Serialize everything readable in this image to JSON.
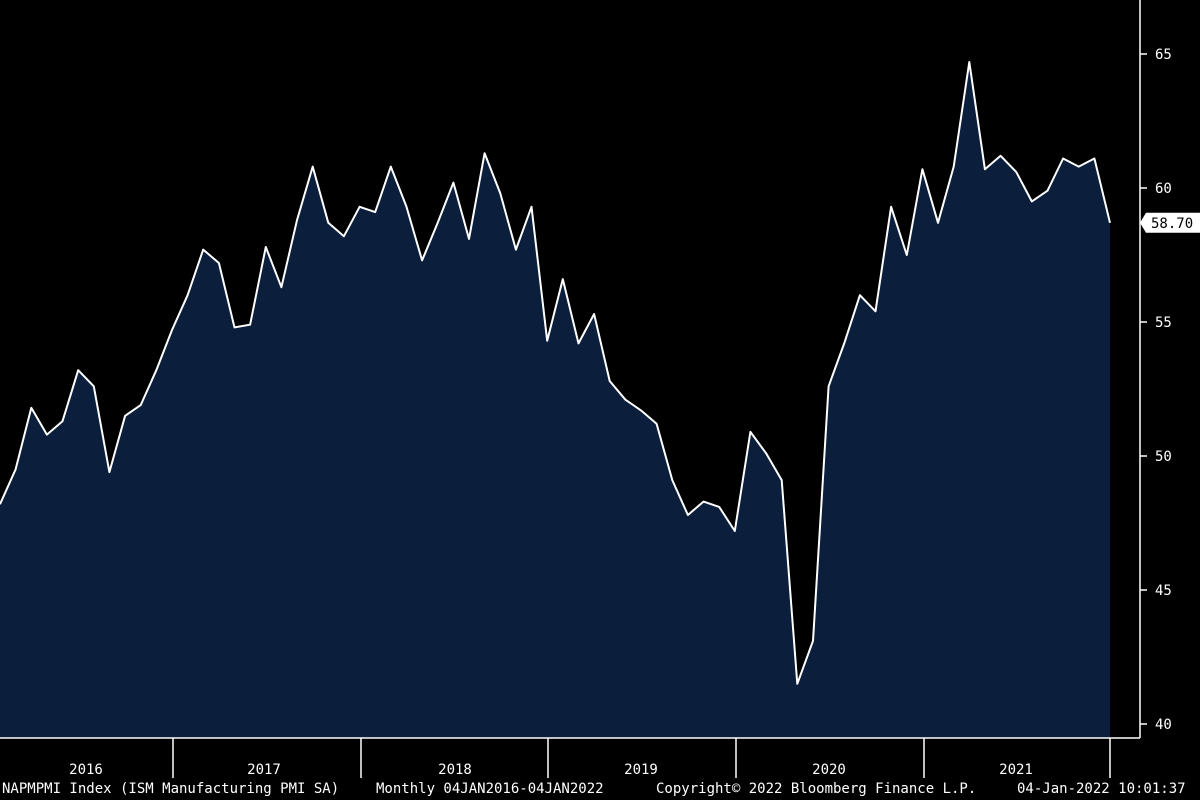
{
  "chart_data": {
    "type": "area",
    "title": "",
    "xlabel": "",
    "ylabel": "",
    "ylim": [
      40,
      67
    ],
    "y_ticks": [
      "40",
      "45",
      "50",
      "55",
      "60",
      "65"
    ],
    "year_labels": [
      "2016",
      "2017",
      "2018",
      "2019",
      "2020",
      "2021"
    ],
    "last_value_label": "58.70",
    "axis_side": "right",
    "grid": false,
    "legend": "none",
    "series": [
      {
        "x": [
          "2016-01",
          "2016-02",
          "2016-03",
          "2016-04",
          "2016-05",
          "2016-06",
          "2016-07",
          "2016-08",
          "2016-09",
          "2016-10",
          "2016-11",
          "2016-12",
          "2017-01",
          "2017-02",
          "2017-03",
          "2017-04",
          "2017-05",
          "2017-06",
          "2017-07",
          "2017-08",
          "2017-09",
          "2017-10",
          "2017-11",
          "2017-12",
          "2018-01",
          "2018-02",
          "2018-03",
          "2018-04",
          "2018-05",
          "2018-06",
          "2018-07",
          "2018-08",
          "2018-09",
          "2018-10",
          "2018-11",
          "2018-12",
          "2019-01",
          "2019-02",
          "2019-03",
          "2019-04",
          "2019-05",
          "2019-06",
          "2019-07",
          "2019-08",
          "2019-09",
          "2019-10",
          "2019-11",
          "2019-12",
          "2020-01",
          "2020-02",
          "2020-03",
          "2020-04",
          "2020-05",
          "2020-06",
          "2020-07",
          "2020-08",
          "2020-09",
          "2020-10",
          "2020-11",
          "2020-12",
          "2021-01",
          "2021-02",
          "2021-03",
          "2021-04",
          "2021-05",
          "2021-06",
          "2021-07",
          "2021-08",
          "2021-09",
          "2021-10",
          "2021-11",
          "2021-12"
        ],
        "values": [
          48.2,
          49.5,
          51.8,
          50.8,
          51.3,
          53.2,
          52.6,
          49.4,
          51.5,
          51.9,
          53.2,
          54.7,
          56.0,
          57.7,
          57.2,
          54.8,
          54.9,
          57.8,
          56.3,
          58.8,
          60.8,
          58.7,
          58.2,
          59.3,
          59.1,
          60.8,
          59.3,
          57.3,
          58.7,
          60.2,
          58.1,
          61.3,
          59.8,
          57.7,
          59.3,
          54.3,
          56.6,
          54.2,
          55.3,
          52.8,
          52.1,
          51.7,
          51.2,
          49.1,
          47.8,
          48.3,
          48.1,
          47.2,
          50.9,
          50.1,
          49.1,
          41.5,
          43.1,
          52.6,
          54.2,
          56.0,
          55.4,
          59.3,
          57.5,
          60.7,
          58.7,
          60.8,
          64.7,
          60.7,
          61.2,
          60.6,
          59.5,
          59.9,
          61.1,
          60.8,
          61.1,
          58.7
        ]
      }
    ],
    "colors": {
      "background": "#000000",
      "area_fill": "#0b1f3d",
      "line": "#ffffff",
      "axis": "#ffffff",
      "label_box": "#ffffff",
      "label_text": "#000000"
    }
  },
  "footer": {
    "ticker": "NAPMPMI Index (ISM Manufacturing PMI SA)",
    "range": "Monthly 04JAN2016-04JAN2022",
    "copyright": "Copyright© 2022 Bloomberg Finance L.P.",
    "timestamp": "04-Jan-2022 10:01:37"
  }
}
